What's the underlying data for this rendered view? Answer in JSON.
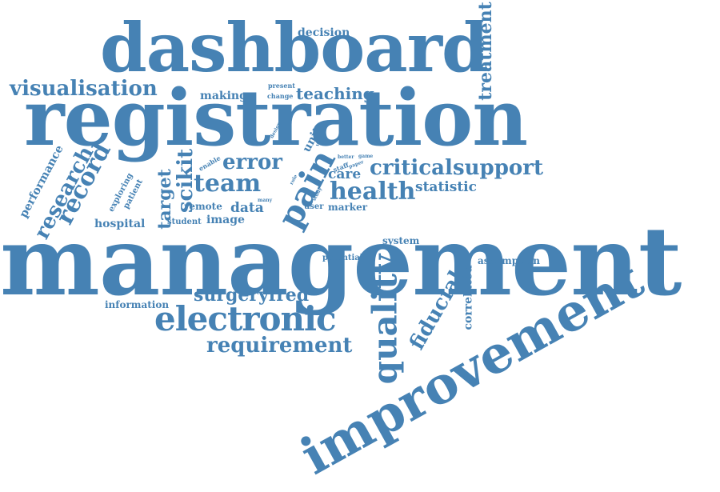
{
  "accent_color": "#4682b4",
  "background_color": "#ffffff",
  "words": {
    "management": "management",
    "registration": "registration",
    "dashboard": "dashboard",
    "improvement": "improvement",
    "electronic": "electronic",
    "pain": "pain",
    "quality": "quality",
    "visualisation": "visualisation",
    "requirement": "requirement",
    "health": "health",
    "team": "team",
    "support": "support",
    "critical": "critical",
    "error": "error",
    "record": "record",
    "research": "research",
    "scikit": "scikit",
    "fiducial": "fiducial",
    "surgeryfred": "surgeryfred",
    "treatment": "treatment",
    "teaching": "teaching",
    "decision": "decision",
    "target": "target",
    "correlated": "correlated",
    "care": "care",
    "statistic": "statistic",
    "data": "data",
    "image": "image",
    "hospital": "hospital",
    "information": "information",
    "performance": "performance",
    "assumption": "assumption",
    "system": "system",
    "making": "making",
    "marker": "marker",
    "unit": "unit",
    "remote": "remote",
    "potential": "potential",
    "user": "user",
    "exploring": "exploring",
    "patient": "patient",
    "student": "student",
    "present": "present",
    "change": "change",
    "design": "design",
    "enable": "enable",
    "better": "better",
    "game": "game",
    "staff": "staff",
    "paper": "paper",
    "many": "many",
    "study": "study",
    "value": "value",
    "role": "role"
  }
}
